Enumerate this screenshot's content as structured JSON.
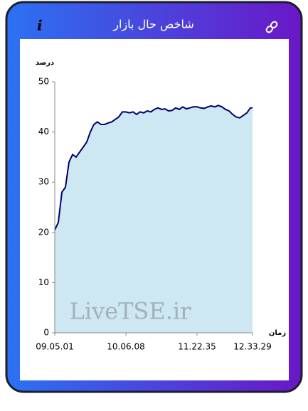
{
  "header": {
    "title": "شاخص حال بازار"
  },
  "chart_data": {
    "type": "area",
    "ylabel": "درصد",
    "xlabel": "زمان",
    "annotation": "LiveTSE.ir",
    "color": "#00006e",
    "fill_color": "#cde8f2",
    "x": [
      0,
      5,
      10,
      15,
      20,
      25,
      30,
      35,
      40,
      45,
      50,
      55,
      60,
      65,
      70,
      75,
      80,
      85,
      90,
      95,
      100,
      105,
      110,
      115,
      120,
      125,
      130,
      135,
      140,
      145,
      150,
      155,
      160,
      165,
      170,
      175,
      180,
      185,
      190,
      195,
      200,
      205,
      210,
      215,
      220,
      225,
      230,
      235,
      240,
      245,
      250,
      255,
      260,
      265,
      270,
      275,
      278
    ],
    "values": [
      20.5,
      22,
      28,
      29,
      34,
      35.5,
      35,
      36,
      37,
      38,
      40,
      41.5,
      42,
      41.5,
      41.5,
      41.8,
      42,
      42.5,
      43,
      44,
      44,
      43.8,
      44,
      43.5,
      44,
      43.8,
      44.2,
      44,
      44.5,
      44.8,
      44.5,
      44.6,
      44.2,
      44.3,
      44.8,
      44.5,
      45,
      44.6,
      44.8,
      45,
      45,
      44.8,
      44.7,
      45,
      45.2,
      45,
      45.3,
      45,
      44.5,
      44.2,
      43.5,
      43,
      42.8,
      43.3,
      43.8,
      44.8,
      44.8
    ],
    "xlim": [
      0,
      278
    ],
    "xticks": [
      {
        "value": 0,
        "label": "09.05.01"
      },
      {
        "value": 100,
        "label": "10.06.08"
      },
      {
        "value": 200,
        "label": "11.22.35"
      },
      {
        "value": 278,
        "label": "12.33.29"
      }
    ],
    "ylim": [
      0,
      50
    ],
    "yticks": [
      0,
      10,
      20,
      30,
      40,
      50
    ]
  }
}
